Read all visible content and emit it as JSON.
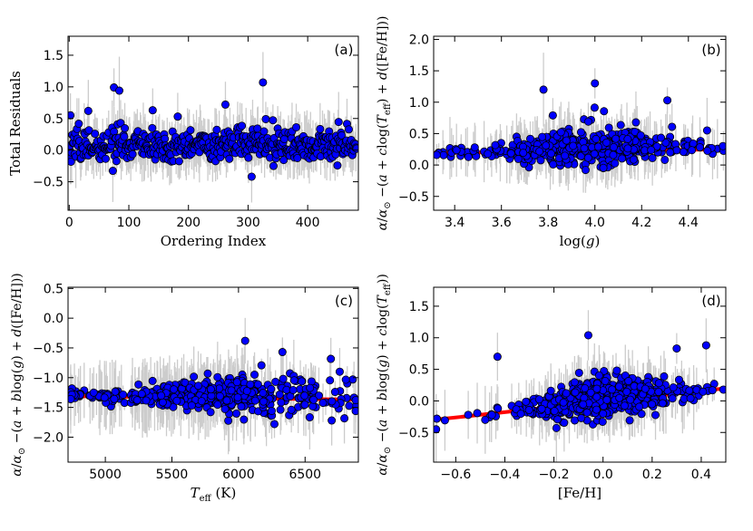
{
  "chart_data": [
    {
      "id": "a",
      "type": "scatter",
      "panel_label": "(a)",
      "xlabel": "Ordering Index",
      "ylabel": "Total Residuals",
      "xlim": [
        -2,
        485
      ],
      "ylim": [
        -0.95,
        1.8
      ],
      "xticks": [
        0,
        100,
        200,
        300,
        400
      ],
      "yticks": [
        -0.5,
        0.0,
        0.5,
        1.0,
        1.5
      ],
      "xtick_labels": [
        "0",
        "100",
        "200",
        "300",
        "400"
      ],
      "ytick_labels": [
        "−0.5",
        "0.0",
        "0.5",
        "1.0",
        "1.5"
      ],
      "x_range": [
        0,
        482
      ],
      "n_points": 482,
      "y_scatter_sd": 0.15,
      "highlighted_points": [
        [
          2,
          0.55
        ],
        [
          32,
          0.62
        ],
        [
          75,
          0.99
        ],
        [
          84,
          0.94
        ],
        [
          140,
          0.63
        ],
        [
          182,
          0.53
        ],
        [
          262,
          0.72
        ],
        [
          325,
          1.07
        ],
        [
          306,
          -0.42
        ]
      ],
      "fit_line": null,
      "marker_color": "#0000ff",
      "errorbar_color": "#cccccc"
    },
    {
      "id": "b",
      "type": "scatter",
      "panel_label": "(b)",
      "xlabel": "log(g)",
      "ylabel": "α/α⊙ − (a + c log(T_eff) + d([Fe/H]))",
      "xlim": [
        3.31,
        4.56
      ],
      "ylim": [
        -0.72,
        2.05
      ],
      "xticks": [
        3.4,
        3.6,
        3.8,
        4.0,
        4.2,
        4.4
      ],
      "yticks": [
        -0.5,
        0.0,
        0.5,
        1.0,
        1.5,
        2.0
      ],
      "xtick_labels": [
        "3.4",
        "3.6",
        "3.8",
        "4.0",
        "4.2",
        "4.4"
      ],
      "ytick_labels": [
        "−0.5",
        "0.0",
        "0.5",
        "1.0",
        "1.5",
        "2.0"
      ],
      "x_range": [
        3.32,
        4.55
      ],
      "n_points": 480,
      "y_scatter_sd": 0.12,
      "highlighted_points": [
        [
          3.78,
          1.2
        ],
        [
          4.0,
          1.3
        ],
        [
          4.31,
          1.03
        ],
        [
          4.48,
          0.55
        ],
        [
          3.82,
          0.79
        ]
      ],
      "fit_line": {
        "x": [
          3.31,
          4.56
        ],
        "y": [
          0.19,
          0.25
        ]
      },
      "marker_color": "#0000ff",
      "errorbar_color": "#cccccc"
    },
    {
      "id": "c",
      "type": "scatter",
      "panel_label": "(c)",
      "xlabel": "T_eff (K)",
      "ylabel": "α/α⊙ − (a + b log(g) + d([Fe/H]))",
      "xlim": [
        4720,
        6900
      ],
      "ylim": [
        -2.42,
        0.52
      ],
      "xticks": [
        5000,
        5500,
        6000,
        6500
      ],
      "yticks": [
        -2.0,
        -1.5,
        -1.0,
        -0.5,
        0.0,
        0.5
      ],
      "xtick_labels": [
        "5000",
        "5500",
        "6000",
        "6500"
      ],
      "ytick_labels": [
        "−2.0",
        "−1.5",
        "−1.0",
        "−0.5",
        "0.0",
        "0.5"
      ],
      "x_range": [
        4740,
        6880
      ],
      "n_points": 480,
      "y_scatter_sd": 0.14,
      "highlighted_points": [
        [
          6050,
          -0.38
        ],
        [
          6330,
          -0.57
        ],
        [
          6760,
          -0.9
        ],
        [
          5790,
          -1.58
        ],
        [
          6270,
          -1.78
        ],
        [
          6700,
          -1.72
        ]
      ],
      "fit_line": {
        "x": [
          4720,
          6900
        ],
        "y": [
          -1.31,
          -1.37
        ]
      },
      "marker_color": "#0000ff",
      "errorbar_color": "#cccccc"
    },
    {
      "id": "d",
      "type": "scatter",
      "panel_label": "(d)",
      "xlabel": "[Fe/H]",
      "ylabel": "α/α⊙ − (a + b log(g) + c log(T_eff))",
      "xlim": [
        -0.69,
        0.5
      ],
      "ylim": [
        -0.97,
        1.8
      ],
      "xticks": [
        -0.6,
        -0.4,
        -0.2,
        0.0,
        0.2,
        0.4
      ],
      "yticks": [
        -0.5,
        0.0,
        0.5,
        1.0,
        1.5
      ],
      "xtick_labels": [
        "−0.6",
        "−0.4",
        "−0.2",
        "0.0",
        "0.2",
        "0.4"
      ],
      "ytick_labels": [
        "−0.5",
        "0.0",
        "0.5",
        "1.0",
        "1.5"
      ],
      "x_range": [
        -0.68,
        0.49
      ],
      "n_points": 470,
      "y_scatter_sd": 0.15,
      "highlighted_points": [
        [
          -0.43,
          0.7
        ],
        [
          -0.48,
          -0.3
        ],
        [
          -0.06,
          1.04
        ],
        [
          0.3,
          0.83
        ],
        [
          0.42,
          0.88
        ],
        [
          -0.68,
          -0.45
        ],
        [
          -0.19,
          -0.43
        ]
      ],
      "fit_line": {
        "x": [
          -0.69,
          0.5
        ],
        "y": [
          -0.3,
          0.2
        ]
      },
      "marker_color": "#0000ff",
      "errorbar_color": "#cccccc"
    }
  ],
  "fit_line_color": "#ff0000"
}
